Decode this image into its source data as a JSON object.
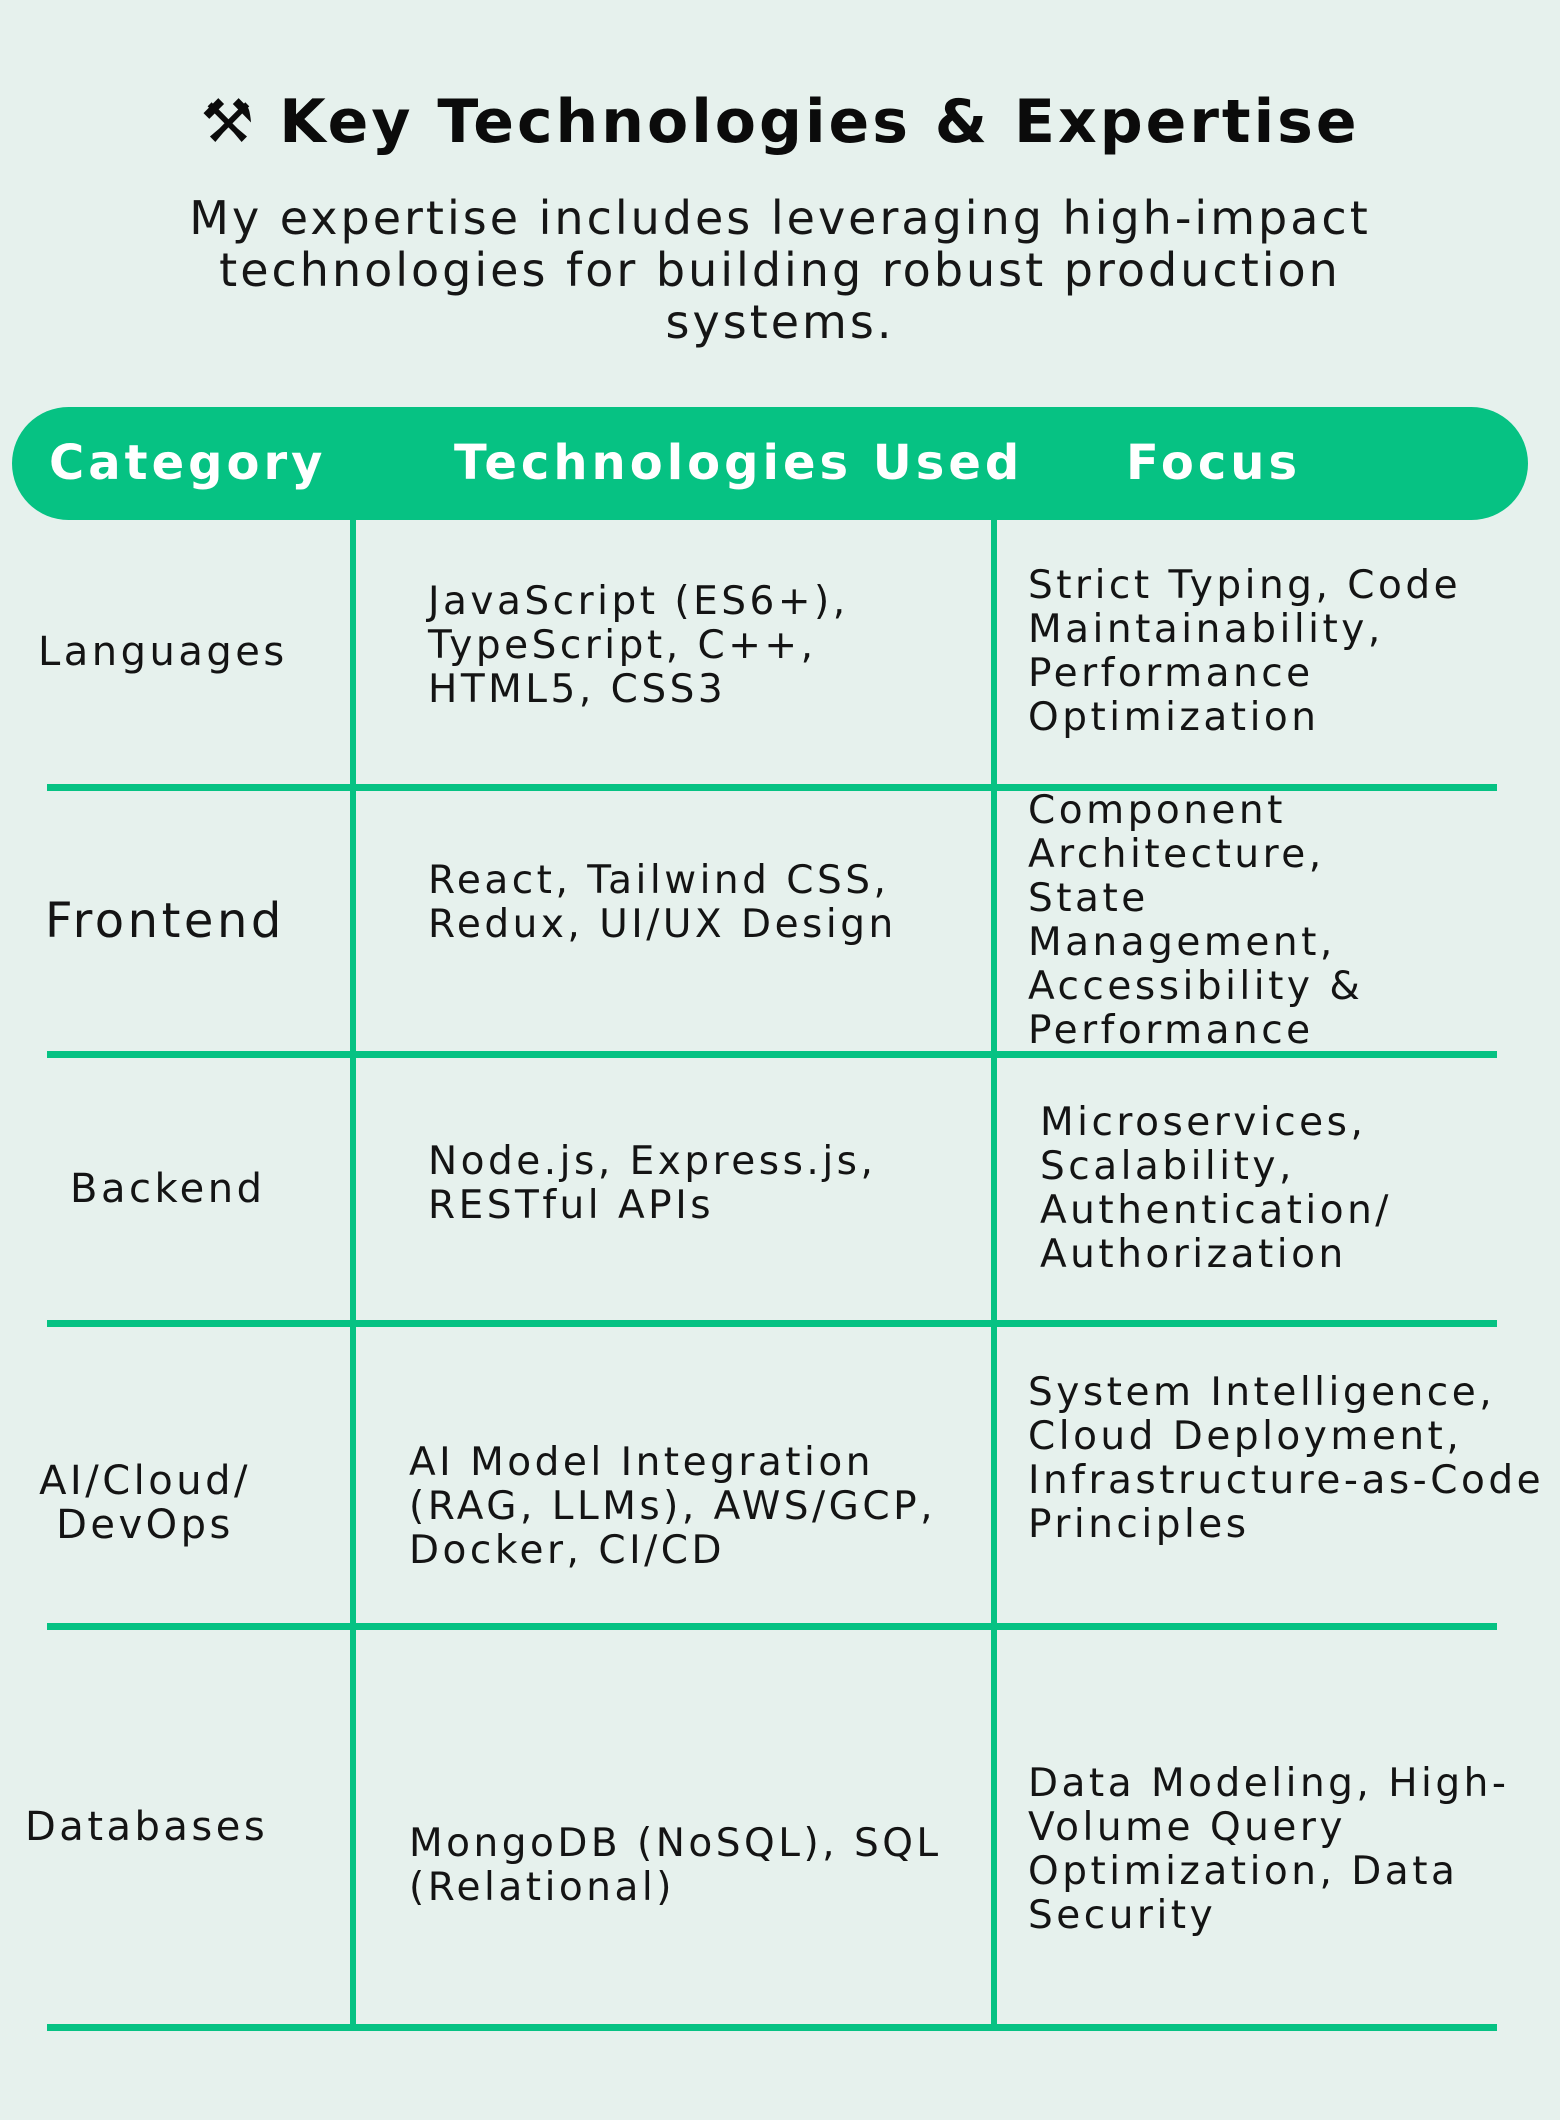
{
  "title": {
    "icon": "hammer-and-wrench-icon",
    "icon_glyph": "⚒",
    "text": "Key Technologies & Expertise"
  },
  "subtitle": "My expertise includes leveraging high-impact technologies for building robust production systems.",
  "colors": {
    "accent": "#06c283",
    "background": "#e6f1ed",
    "header_text": "#ffffff",
    "body_text": "#141414"
  },
  "table": {
    "headers": [
      "Category",
      "Technologies Used",
      "Focus"
    ],
    "rows": [
      {
        "category": "Languages",
        "technologies": "JavaScript (ES6+), TypeScript, C++, HTML5, CSS3",
        "focus": "Strict Typing, Code Maintainability, Performance Optimization"
      },
      {
        "category": "Frontend",
        "technologies": "React, Tailwind CSS, Redux, UI/UX Design",
        "focus": "Component Architecture, State Management, Accessibility & Performance"
      },
      {
        "category": "Backend",
        "technologies": "Node.js, Express.js, RESTful APIs",
        "focus": "Microservices, Scalability, Authentication/ Authorization"
      },
      {
        "category": "AI/Cloud/ DevOps",
        "technologies": "AI Model Integration (RAG, LLMs), AWS/GCP, Docker, CI/CD",
        "focus": "System Intelligence, Cloud Deployment, Infrastructure-as-Code Principles"
      },
      {
        "category": "Databases",
        "technologies": "MongoDB (NoSQL), SQL (Relational)",
        "focus": "Data Modeling, High-Volume Query Optimization, Data Security"
      }
    ]
  }
}
